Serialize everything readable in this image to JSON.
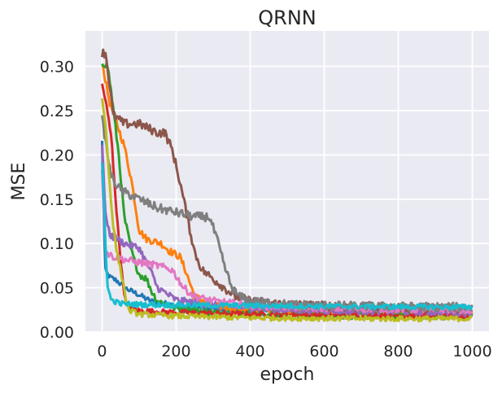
{
  "chart_data": {
    "type": "line",
    "title": "QRNN",
    "xlabel": "epoch",
    "ylabel": "MSE",
    "xlim": [
      -45,
      1045
    ],
    "ylim": [
      0,
      0.34
    ],
    "xticks": [
      0,
      200,
      400,
      600,
      800,
      1000
    ],
    "xtick_labels": [
      "0",
      "200",
      "400",
      "600",
      "800",
      "1000"
    ],
    "yticks": [
      0,
      0.05,
      0.1,
      0.15,
      0.2,
      0.25,
      0.3
    ],
    "ytick_labels": [
      "0.00",
      "0.05",
      "0.10",
      "0.15",
      "0.20",
      "0.25",
      "0.30"
    ],
    "grid": true,
    "background": "#eaeaf2",
    "grid_color": "#ffffff",
    "series": [
      {
        "color": "#1f77b4",
        "noise": 0.003,
        "points": [
          [
            0,
            0.215
          ],
          [
            8,
            0.07
          ],
          [
            20,
            0.062
          ],
          [
            40,
            0.058
          ],
          [
            60,
            0.05
          ],
          [
            100,
            0.042
          ],
          [
            130,
            0.035
          ],
          [
            200,
            0.03
          ],
          [
            300,
            0.026
          ],
          [
            500,
            0.022
          ],
          [
            700,
            0.021
          ],
          [
            1000,
            0.02
          ]
        ]
      },
      {
        "color": "#ff7f0e",
        "noise": 0.004,
        "points": [
          [
            0,
            0.305
          ],
          [
            20,
            0.26
          ],
          [
            60,
            0.21
          ],
          [
            80,
            0.17
          ],
          [
            100,
            0.115
          ],
          [
            120,
            0.105
          ],
          [
            160,
            0.1
          ],
          [
            180,
            0.092
          ],
          [
            210,
            0.085
          ],
          [
            225,
            0.07
          ],
          [
            250,
            0.04
          ],
          [
            300,
            0.03
          ],
          [
            400,
            0.025
          ],
          [
            600,
            0.023
          ],
          [
            1000,
            0.021
          ]
        ]
      },
      {
        "color": "#2ca02c",
        "noise": 0.004,
        "points": [
          [
            0,
            0.305
          ],
          [
            15,
            0.3
          ],
          [
            25,
            0.27
          ],
          [
            45,
            0.2
          ],
          [
            60,
            0.13
          ],
          [
            80,
            0.09
          ],
          [
            100,
            0.065
          ],
          [
            120,
            0.06
          ],
          [
            135,
            0.045
          ],
          [
            150,
            0.035
          ],
          [
            200,
            0.027
          ],
          [
            300,
            0.022
          ],
          [
            500,
            0.019
          ],
          [
            1000,
            0.018
          ]
        ]
      },
      {
        "color": "#d62728",
        "noise": 0.003,
        "points": [
          [
            0,
            0.28
          ],
          [
            10,
            0.26
          ],
          [
            25,
            0.22
          ],
          [
            40,
            0.13
          ],
          [
            55,
            0.06
          ],
          [
            65,
            0.03
          ],
          [
            100,
            0.024
          ],
          [
            200,
            0.022
          ],
          [
            400,
            0.02
          ],
          [
            700,
            0.019
          ],
          [
            1000,
            0.018
          ]
        ]
      },
      {
        "color": "#9467bd",
        "noise": 0.004,
        "points": [
          [
            0,
            0.21
          ],
          [
            10,
            0.13
          ],
          [
            20,
            0.11
          ],
          [
            60,
            0.1
          ],
          [
            100,
            0.095
          ],
          [
            130,
            0.07
          ],
          [
            150,
            0.05
          ],
          [
            200,
            0.036
          ],
          [
            300,
            0.03
          ],
          [
            500,
            0.025
          ],
          [
            1000,
            0.022
          ]
        ]
      },
      {
        "color": "#8c564b",
        "noise": 0.005,
        "points": [
          [
            0,
            0.315
          ],
          [
            10,
            0.315
          ],
          [
            20,
            0.28
          ],
          [
            30,
            0.245
          ],
          [
            60,
            0.235
          ],
          [
            100,
            0.235
          ],
          [
            150,
            0.225
          ],
          [
            170,
            0.225
          ],
          [
            190,
            0.205
          ],
          [
            210,
            0.17
          ],
          [
            230,
            0.13
          ],
          [
            250,
            0.09
          ],
          [
            270,
            0.07
          ],
          [
            300,
            0.06
          ],
          [
            330,
            0.05
          ],
          [
            360,
            0.04
          ],
          [
            400,
            0.035
          ],
          [
            500,
            0.031
          ],
          [
            700,
            0.028
          ],
          [
            1000,
            0.027
          ]
        ]
      },
      {
        "color": "#e377c2",
        "noise": 0.004,
        "points": [
          [
            0,
            0.18
          ],
          [
            10,
            0.09
          ],
          [
            30,
            0.085
          ],
          [
            80,
            0.08
          ],
          [
            150,
            0.075
          ],
          [
            190,
            0.07
          ],
          [
            220,
            0.05
          ],
          [
            250,
            0.04
          ],
          [
            300,
            0.035
          ],
          [
            400,
            0.03
          ],
          [
            600,
            0.027
          ],
          [
            1000,
            0.025
          ]
        ]
      },
      {
        "color": "#7f7f7f",
        "noise": 0.005,
        "points": [
          [
            0,
            0.24
          ],
          [
            15,
            0.2
          ],
          [
            25,
            0.175
          ],
          [
            50,
            0.16
          ],
          [
            100,
            0.15
          ],
          [
            150,
            0.14
          ],
          [
            200,
            0.135
          ],
          [
            250,
            0.13
          ],
          [
            290,
            0.13
          ],
          [
            310,
            0.105
          ],
          [
            330,
            0.075
          ],
          [
            350,
            0.05
          ],
          [
            370,
            0.04
          ],
          [
            400,
            0.035
          ],
          [
            500,
            0.031
          ],
          [
            700,
            0.029
          ],
          [
            1000,
            0.028
          ]
        ]
      },
      {
        "color": "#bcbd22",
        "noise": 0.003,
        "points": [
          [
            0,
            0.265
          ],
          [
            10,
            0.23
          ],
          [
            20,
            0.17
          ],
          [
            30,
            0.12
          ],
          [
            40,
            0.09
          ],
          [
            55,
            0.06
          ],
          [
            70,
            0.025
          ],
          [
            100,
            0.02
          ],
          [
            200,
            0.018
          ],
          [
            400,
            0.016
          ],
          [
            700,
            0.015
          ],
          [
            1000,
            0.015
          ]
        ]
      },
      {
        "color": "#17becf",
        "noise": 0.003,
        "points": [
          [
            0,
            0.19
          ],
          [
            5,
            0.15
          ],
          [
            10,
            0.09
          ],
          [
            15,
            0.05
          ],
          [
            25,
            0.036
          ],
          [
            50,
            0.032
          ],
          [
            100,
            0.031
          ],
          [
            300,
            0.03
          ],
          [
            600,
            0.029
          ],
          [
            1000,
            0.028
          ]
        ]
      }
    ]
  }
}
